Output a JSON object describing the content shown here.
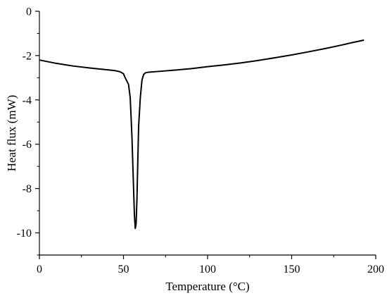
{
  "chart_data": {
    "type": "line",
    "title": "",
    "xlabel": "Temperature (°C)",
    "ylabel": "Heat flux (mW)",
    "xlim": [
      0,
      200
    ],
    "ylim": [
      -11,
      0
    ],
    "xticks": [
      0,
      50,
      100,
      150,
      200
    ],
    "yticks": [
      0,
      -2,
      -4,
      -6,
      -8,
      -10
    ],
    "grid": false,
    "legend": "none",
    "line_color": "#000000",
    "series": [
      {
        "x": [
          0,
          10,
          20,
          30,
          40,
          45,
          48,
          50,
          51,
          52,
          53,
          54,
          55,
          56,
          56.5,
          57,
          57.5,
          58,
          58.5,
          59,
          60,
          61,
          62,
          63,
          64,
          65,
          70,
          80,
          90,
          100,
          110,
          120,
          130,
          140,
          150,
          160,
          170,
          180,
          185,
          190,
          193
        ],
        "y": [
          -2.2,
          -2.35,
          -2.47,
          -2.56,
          -2.64,
          -2.68,
          -2.73,
          -2.82,
          -3.0,
          -3.15,
          -3.3,
          -3.9,
          -5.6,
          -8.0,
          -9.2,
          -9.8,
          -9.6,
          -8.5,
          -6.8,
          -5.2,
          -3.9,
          -3.1,
          -2.85,
          -2.78,
          -2.76,
          -2.75,
          -2.72,
          -2.66,
          -2.59,
          -2.5,
          -2.42,
          -2.33,
          -2.22,
          -2.1,
          -1.97,
          -1.83,
          -1.68,
          -1.52,
          -1.43,
          -1.35,
          -1.3
        ]
      }
    ]
  }
}
